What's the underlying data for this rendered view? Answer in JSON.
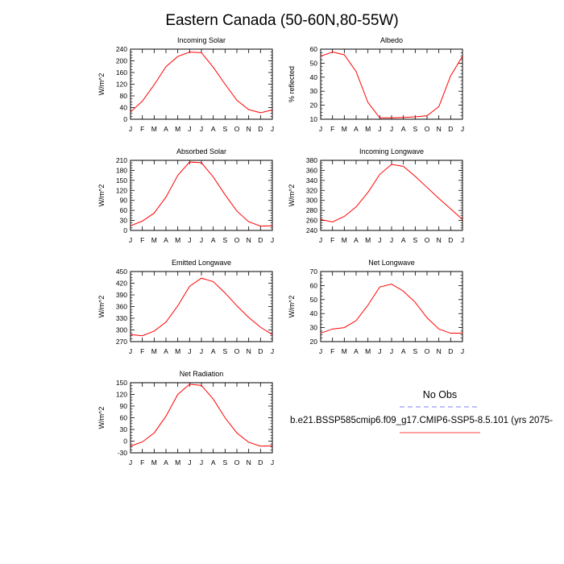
{
  "figure_title": "Eastern Canada (50-60N,80-55W)",
  "legend": {
    "header": "No Obs",
    "entries": [
      {
        "label": "",
        "color": "#7f7fff",
        "dash": true
      },
      {
        "label": "b.e21.BSSP585cmip6.f09_g17.CMIP6-SSP5-8.5.101 (yrs 2075-",
        "color": "#ff0000",
        "dash": false
      }
    ]
  },
  "chart_data": [
    {
      "type": "line",
      "title": "Incoming Solar",
      "ylabel": "W/m^2",
      "x": [
        "J",
        "F",
        "M",
        "A",
        "M",
        "J",
        "J",
        "A",
        "S",
        "O",
        "N",
        "D",
        "J"
      ],
      "ylim": [
        0,
        240
      ],
      "yticks": [
        0,
        40,
        80,
        120,
        160,
        200,
        240
      ],
      "series": [
        {
          "color": "#ff0000",
          "values": [
            25,
            62,
            118,
            180,
            215,
            230,
            228,
            178,
            120,
            65,
            33,
            22,
            32
          ]
        }
      ]
    },
    {
      "type": "line",
      "title": "Albedo",
      "ylabel": "% reflected",
      "x": [
        "J",
        "F",
        "M",
        "A",
        "M",
        "J",
        "J",
        "A",
        "S",
        "O",
        "N",
        "D",
        "J"
      ],
      "ylim": [
        10,
        60
      ],
      "yticks": [
        10,
        20,
        30,
        40,
        50,
        60
      ],
      "series": [
        {
          "color": "#ff0000",
          "values": [
            55,
            58,
            56,
            44,
            22,
            11,
            11,
            11.3,
            11.7,
            12.5,
            19,
            41,
            55
          ]
        }
      ]
    },
    {
      "type": "line",
      "title": "Absorbed Solar",
      "ylabel": "W/m^2",
      "x": [
        "J",
        "F",
        "M",
        "A",
        "M",
        "J",
        "J",
        "A",
        "S",
        "O",
        "N",
        "D",
        "J"
      ],
      "ylim": [
        0,
        210
      ],
      "yticks": [
        0,
        30,
        60,
        90,
        120,
        150,
        180,
        210
      ],
      "series": [
        {
          "color": "#ff0000",
          "values": [
            14,
            28,
            52,
            100,
            165,
            205,
            203,
            160,
            107,
            58,
            26,
            13,
            14
          ]
        }
      ]
    },
    {
      "type": "line",
      "title": "Incoming Longwave",
      "ylabel": "W/m^2",
      "x": [
        "J",
        "F",
        "M",
        "A",
        "M",
        "J",
        "J",
        "A",
        "S",
        "O",
        "N",
        "D",
        "J"
      ],
      "ylim": [
        240,
        380
      ],
      "yticks": [
        240,
        260,
        280,
        300,
        320,
        340,
        360,
        380
      ],
      "series": [
        {
          "color": "#ff0000",
          "values": [
            262,
            257,
            268,
            287,
            316,
            352,
            372,
            368,
            348,
            326,
            304,
            283,
            262
          ]
        }
      ]
    },
    {
      "type": "line",
      "title": "Emitted Longwave",
      "ylabel": "W/m^2",
      "x": [
        "J",
        "F",
        "M",
        "A",
        "M",
        "J",
        "J",
        "A",
        "S",
        "O",
        "N",
        "D",
        "J"
      ],
      "ylim": [
        270,
        450
      ],
      "yticks": [
        270,
        300,
        330,
        360,
        390,
        420,
        450
      ],
      "series": [
        {
          "color": "#ff0000",
          "values": [
            288,
            285,
            297,
            320,
            362,
            412,
            433,
            424,
            395,
            362,
            332,
            307,
            288
          ]
        }
      ]
    },
    {
      "type": "line",
      "title": "Net Longwave",
      "ylabel": "W/m^2",
      "x": [
        "J",
        "F",
        "M",
        "A",
        "M",
        "J",
        "J",
        "A",
        "S",
        "O",
        "N",
        "D",
        "J"
      ],
      "ylim": [
        20,
        70
      ],
      "yticks": [
        20,
        30,
        40,
        50,
        60,
        70
      ],
      "series": [
        {
          "color": "#ff0000",
          "values": [
            26,
            29,
            30,
            35,
            46,
            59,
            61,
            56,
            48,
            37,
            29,
            26,
            26
          ]
        }
      ]
    },
    {
      "type": "line",
      "title": "Net Radiation",
      "ylabel": "W/m^2",
      "x": [
        "J",
        "F",
        "M",
        "A",
        "M",
        "J",
        "J",
        "A",
        "S",
        "O",
        "N",
        "D",
        "J"
      ],
      "ylim": [
        -30,
        150
      ],
      "yticks": [
        -30,
        0,
        30,
        60,
        90,
        120,
        150
      ],
      "series": [
        {
          "color": "#ff0000",
          "values": [
            -13,
            -2,
            21,
            64,
            120,
            146,
            143,
            108,
            60,
            21,
            -3,
            -13,
            -12
          ]
        }
      ]
    }
  ]
}
